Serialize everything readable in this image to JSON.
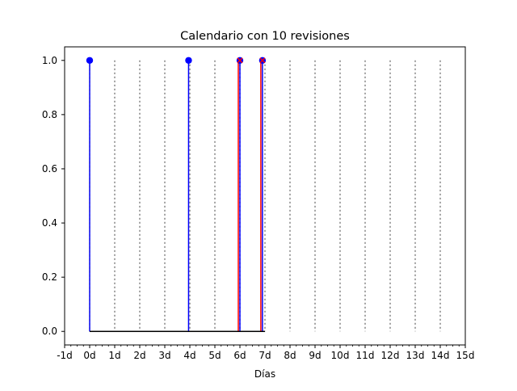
{
  "chart_data": {
    "type": "stem",
    "title": "Calendario con 10 revisiones",
    "xlabel": "Días",
    "ylabel": "",
    "xlim": [
      -1,
      15
    ],
    "ylim": [
      -0.05,
      1.05
    ],
    "x_ticks": [
      -1,
      0,
      1,
      2,
      3,
      4,
      5,
      6,
      7,
      8,
      9,
      10,
      11,
      12,
      13,
      14,
      15
    ],
    "x_tick_labels": [
      "-1d",
      "0d",
      "1d",
      "2d",
      "3d",
      "4d",
      "5d",
      "6d",
      "7d",
      "8d",
      "9d",
      "10d",
      "11d",
      "12d",
      "13d",
      "14d",
      "15d"
    ],
    "y_ticks": [
      0.0,
      0.2,
      0.4,
      0.6,
      0.8,
      1.0
    ],
    "y_tick_labels": [
      "0.0",
      "0.2",
      "0.4",
      "0.6",
      "0.8",
      "1.0"
    ],
    "day_markers": [
      1,
      2,
      3,
      4,
      5,
      6,
      7,
      8,
      9,
      10,
      11,
      12,
      13,
      14
    ],
    "baseline": {
      "from": 0,
      "to": 7.0,
      "y": 0
    },
    "series": [
      {
        "color": "#0000ff",
        "x": [
          0,
          3.95,
          6.0,
          6.9
        ],
        "y": [
          1.0,
          1.0,
          1.0,
          1.0
        ]
      },
      {
        "color": "#ff0000",
        "x": [
          6.0,
          6.9
        ],
        "y": [
          1.0,
          1.0
        ]
      }
    ],
    "colors": {
      "day_marker": "#808080",
      "baseline": "#000000",
      "axes": "#000000"
    },
    "grid": false
  }
}
